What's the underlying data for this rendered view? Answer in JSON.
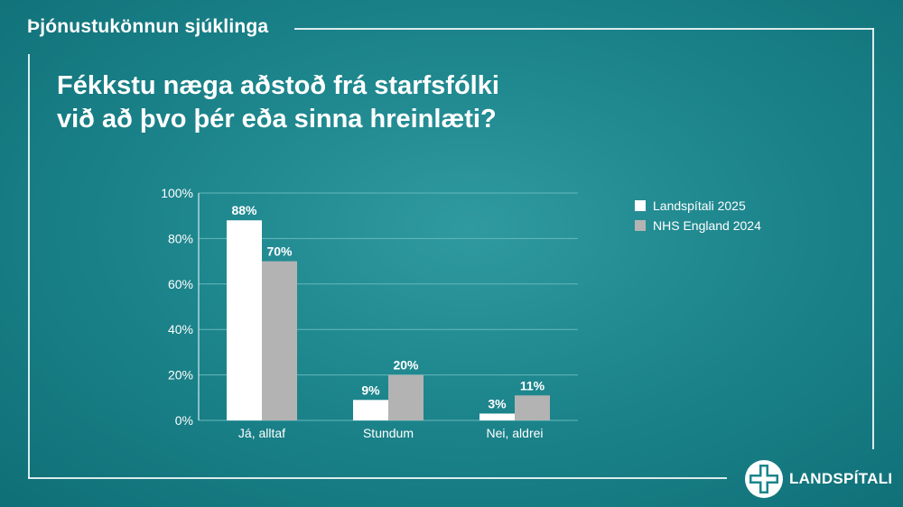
{
  "header": {
    "title": "Þjónustukönnun sjúklinga"
  },
  "question": {
    "line1": "Fékkstu næga aðstoð frá starfsfólki",
    "line2": "við að þvo þér eða sinna hreinlæti?"
  },
  "chart_data": {
    "type": "bar",
    "categories": [
      "Já, alltaf",
      "Stundum",
      "Nei, aldrei"
    ],
    "series": [
      {
        "name": "Landspítali 2025",
        "values": [
          88,
          9,
          3
        ],
        "labels": [
          "88%",
          "9%",
          "3%"
        ],
        "color": "#ffffff"
      },
      {
        "name": "NHS England 2024",
        "values": [
          70,
          20,
          11
        ],
        "labels": [
          "70%",
          "20%",
          "11%"
        ],
        "color": "#b3b3b3"
      }
    ],
    "ylim": [
      0,
      100
    ],
    "yticks": [
      0,
      20,
      40,
      60,
      80,
      100
    ],
    "ytick_labels": [
      "0%",
      "20%",
      "40%",
      "60%",
      "80%",
      "100%"
    ],
    "grid": true,
    "legend": "right",
    "title": "",
    "xlabel": "",
    "ylabel": ""
  },
  "logo": {
    "name": "LANDSPÍTALI",
    "icon": "landspitali-cross-icon"
  },
  "colors": {
    "background": "#1d858c",
    "text": "#ffffff",
    "gridline": "#5fb4b8"
  }
}
